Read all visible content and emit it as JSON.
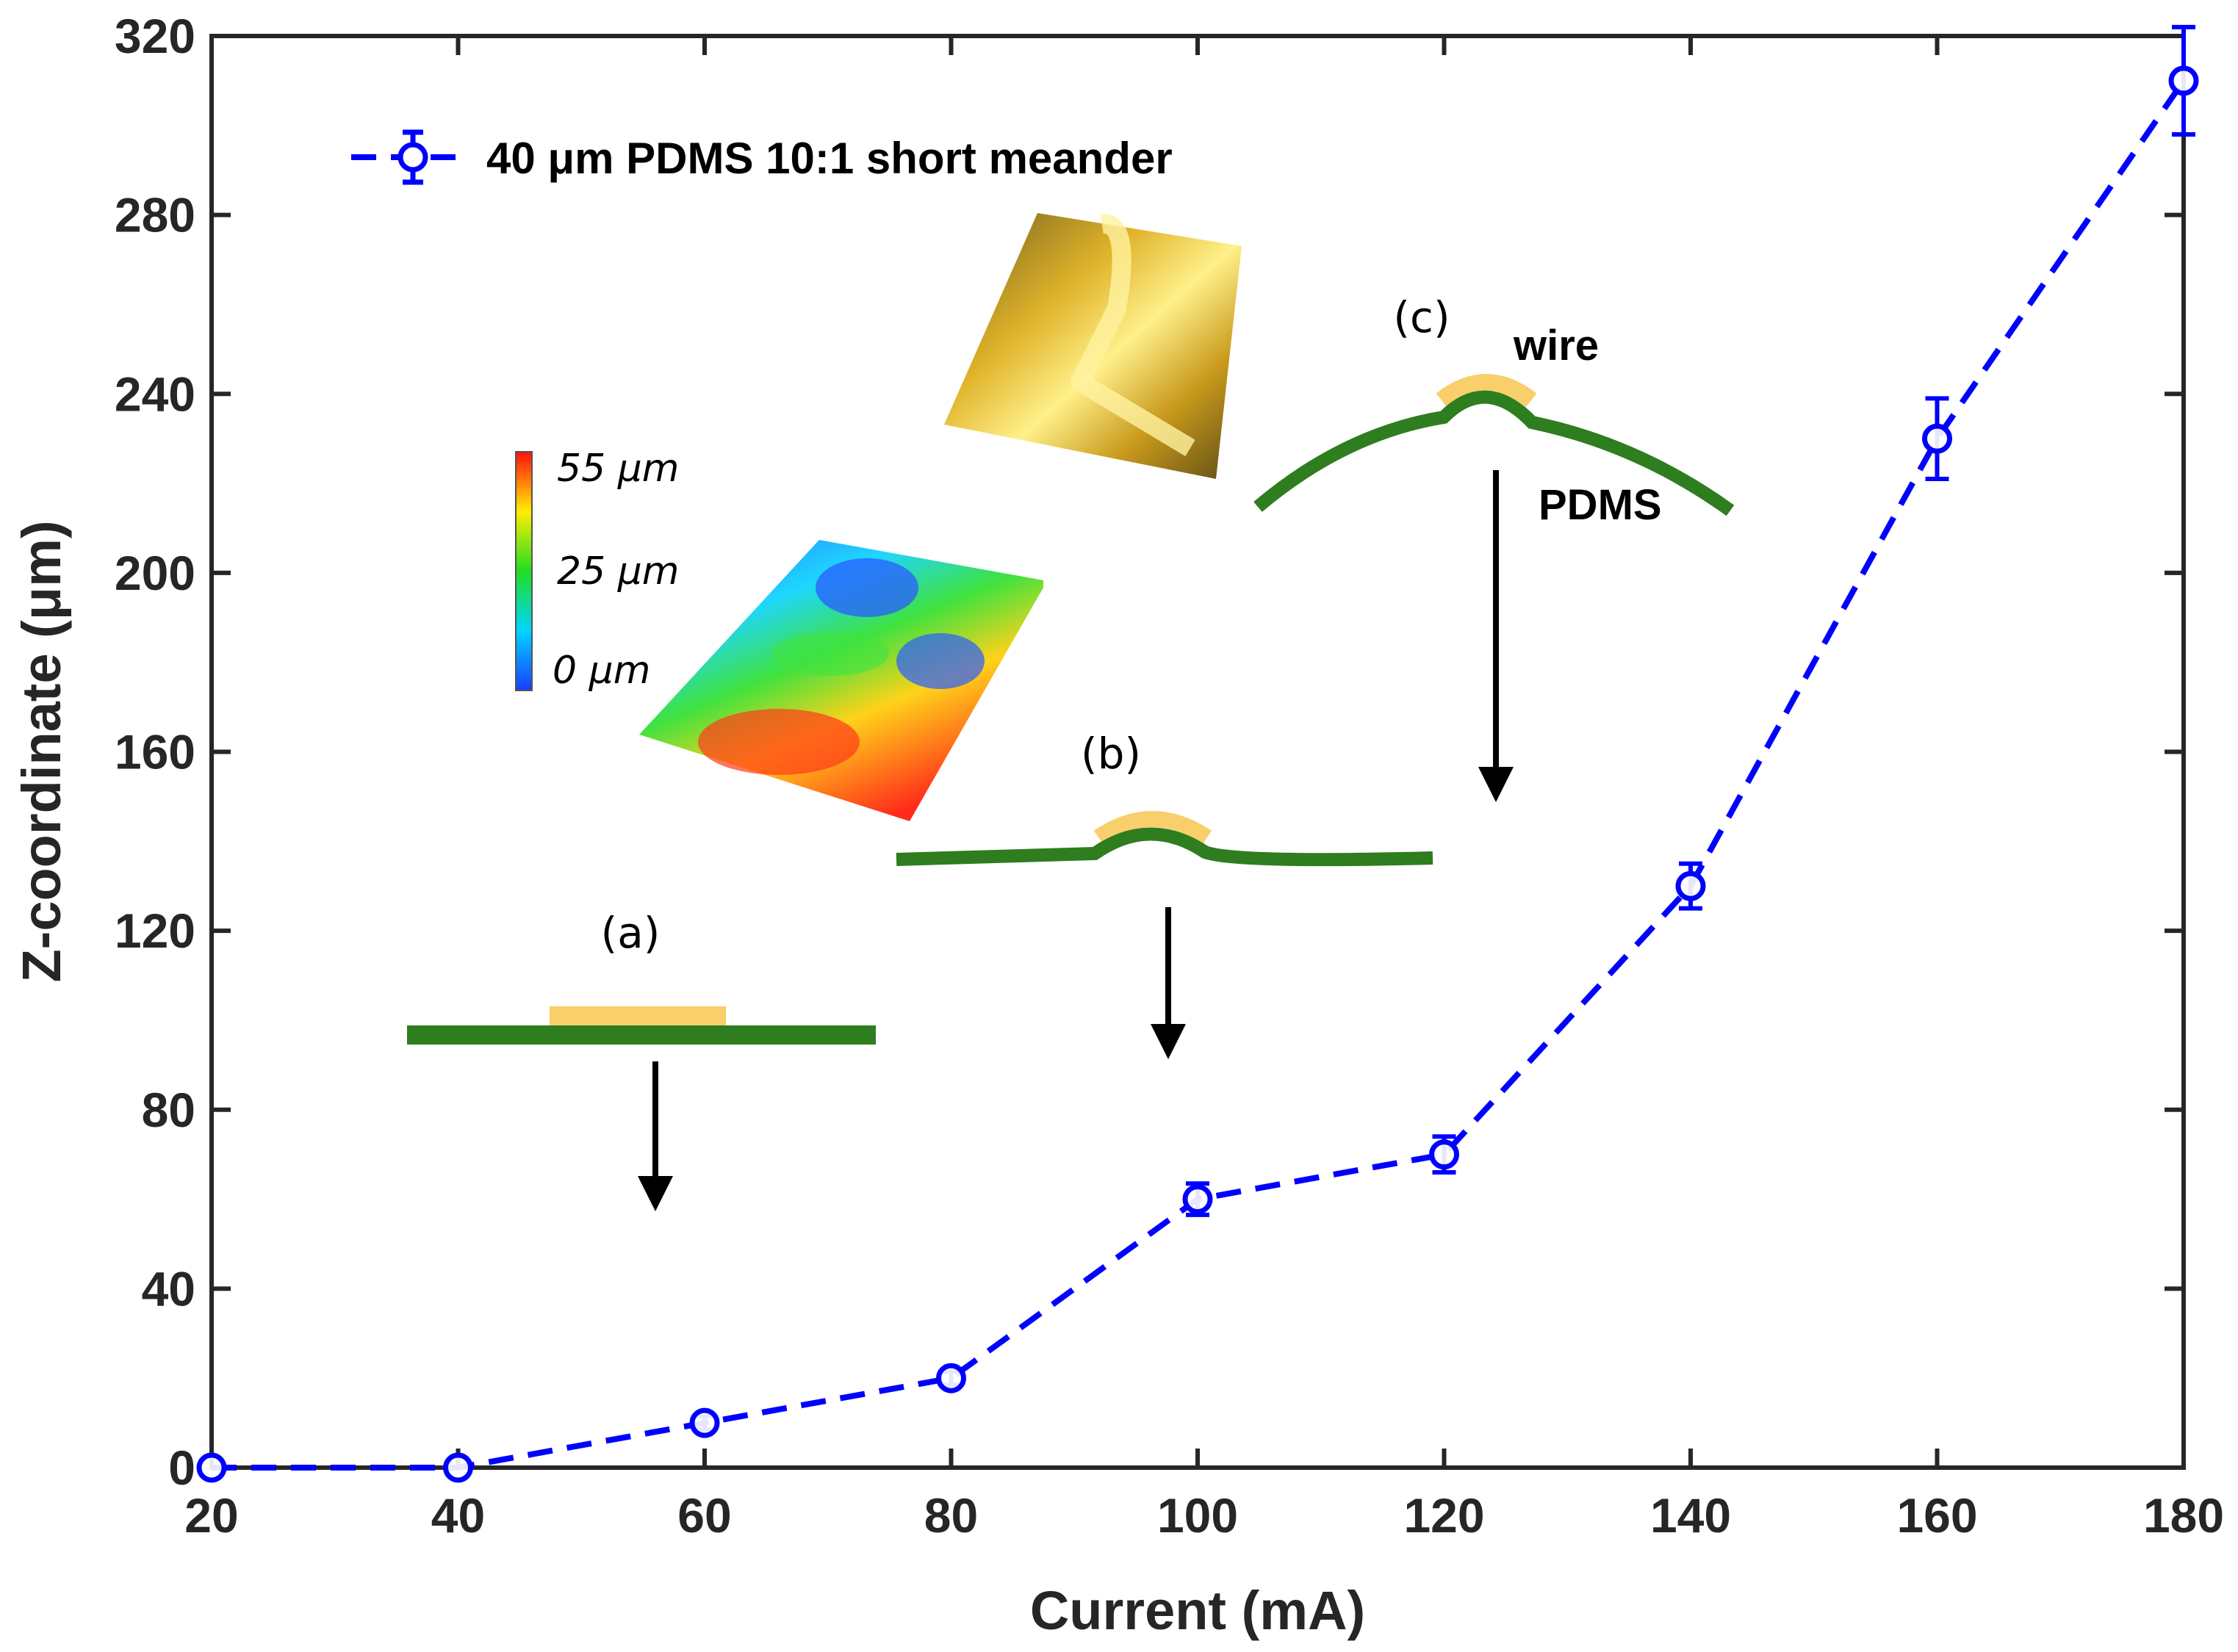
{
  "chart_data": {
    "type": "line",
    "title": "",
    "xlabel": "Current (mA)",
    "ylabel": "Z-coordinate (μm)",
    "xlim": [
      20,
      180
    ],
    "ylim": [
      0,
      320
    ],
    "xticks": [
      "20",
      "40",
      "60",
      "80",
      "100",
      "120",
      "140",
      "160",
      "180"
    ],
    "yticks": [
      "0",
      "40",
      "80",
      "120",
      "160",
      "200",
      "240",
      "280",
      "320"
    ],
    "grid": false,
    "legend_position": "top-left",
    "series": [
      {
        "name": "40 μm PDMS 10:1 short meander",
        "color": "#0000FF",
        "marker": "circle",
        "linestyle": "dashed",
        "x": [
          20,
          40,
          60,
          80,
          100,
          120,
          140,
          160,
          180
        ],
        "y": [
          0,
          0,
          10,
          20,
          60,
          70,
          130,
          230,
          310
        ],
        "error": [
          0,
          0,
          1.5,
          1.5,
          3.5,
          4,
          5,
          9,
          12
        ]
      }
    ],
    "annotations": {
      "stage_a": "(a)",
      "stage_b": "(b)",
      "stage_c": "(c)",
      "wire_label": "wire",
      "pdms_label": "PDMS",
      "colorbar_max": "55 μm",
      "colorbar_mid": "25 μm",
      "colorbar_min": "0 μm"
    }
  },
  "colors": {
    "series": "#0000FF",
    "pdms": "#2E7D1E",
    "wire": "#F8CF6A",
    "axis": "#262626"
  }
}
